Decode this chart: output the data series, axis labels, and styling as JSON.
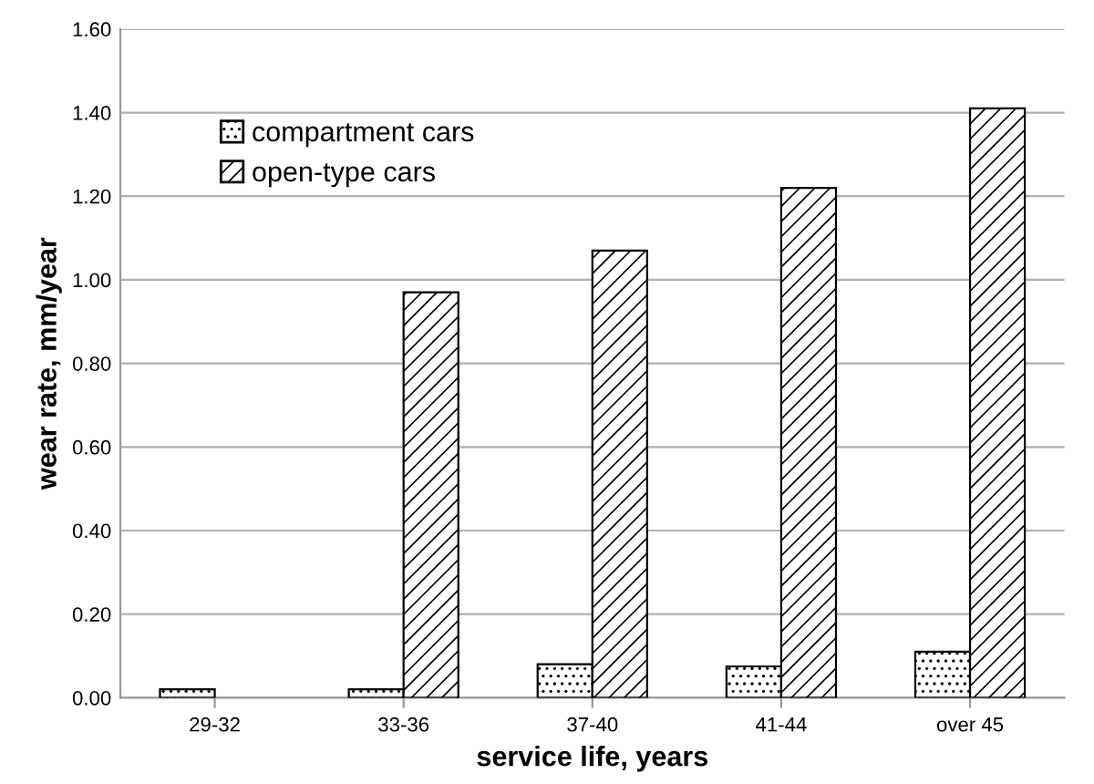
{
  "chart_data": {
    "type": "bar",
    "xlabel": "service life, years",
    "ylabel": "wear rate, mm/year",
    "categories": [
      "29-32",
      "33-36",
      "37-40",
      "41-44",
      "over 45"
    ],
    "series": [
      {
        "name": "compartment cars",
        "color": "#000000",
        "values": [
          0.02,
          0.02,
          0.08,
          0.075,
          0.11
        ]
      },
      {
        "name": "open-type cars",
        "color": "#000000",
        "values": [
          null,
          0.97,
          1.07,
          1.22,
          1.41
        ]
      }
    ],
    "ylim": [
      0,
      1.6
    ],
    "yticks": [
      {
        "value": 0,
        "label": "0.00"
      },
      {
        "value": 0.2,
        "label": "0.20"
      },
      {
        "value": 0.4,
        "label": "0.40"
      },
      {
        "value": 0.6,
        "label": "0.60"
      },
      {
        "value": 0.8,
        "label": "0.80"
      },
      {
        "value": 1.0,
        "label": "1.00"
      },
      {
        "value": 1.2,
        "label": "1.20"
      },
      {
        "value": 1.4,
        "label": "1.40"
      },
      {
        "value": 1.6,
        "label": "1.60"
      }
    ],
    "grid": "y",
    "legend": "top left"
  }
}
